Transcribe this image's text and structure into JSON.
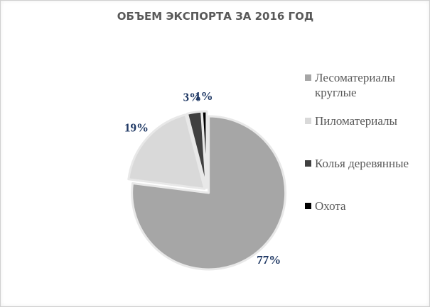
{
  "chart_data": {
    "type": "pie",
    "title": "ОБЪЕМ ЭКСПОРТА ЗА 2016 ГОД",
    "categories": [
      "Лесоматериалы круглые",
      "Пиломатериалы",
      "Колья деревянные",
      "Охота"
    ],
    "values": [
      77,
      19,
      3,
      1
    ],
    "value_labels": [
      "77%",
      "19%",
      "3%",
      "1%"
    ],
    "colors": [
      "#a6a6a6",
      "#d9d9d9",
      "#404040",
      "#000000"
    ],
    "legend": "right"
  }
}
